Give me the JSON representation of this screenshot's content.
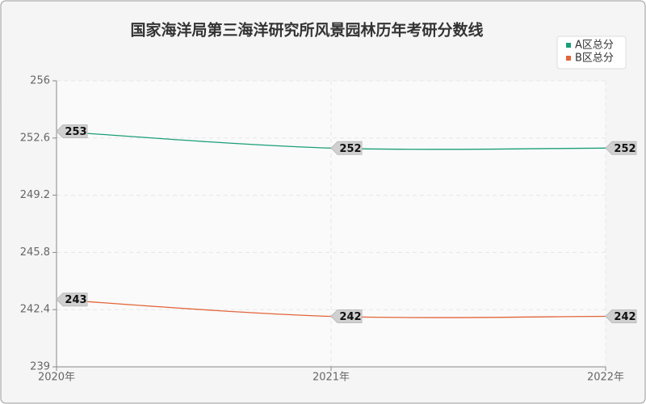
{
  "chart_data": {
    "type": "line",
    "title": "国家海洋局第三海洋研究所风景园林历年考研分数线",
    "categories": [
      "2020年",
      "2021年",
      "2022年"
    ],
    "series": [
      {
        "name": "A区总分",
        "color": "#1b9e77",
        "values": [
          253,
          252,
          252
        ]
      },
      {
        "name": "B区总分",
        "color": "#e2653a",
        "values": [
          243,
          242,
          242
        ]
      }
    ],
    "ylim": [
      239,
      256
    ],
    "yticks": [
      239,
      242.4,
      245.8,
      249.2,
      252.6,
      256
    ],
    "grid": true,
    "legend": "top-right"
  }
}
